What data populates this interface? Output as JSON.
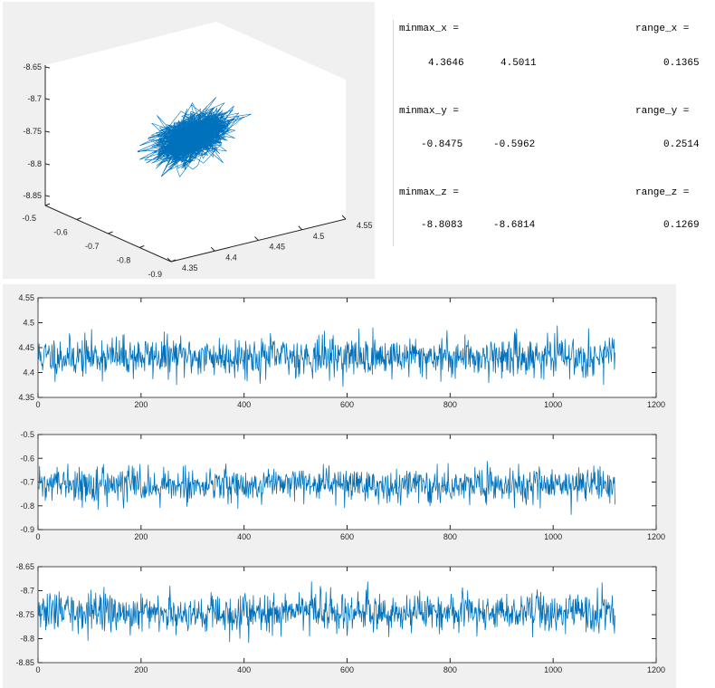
{
  "console": {
    "blocks": [
      {
        "name_label": "minmax_x =",
        "range_label": "range_x =",
        "min": "4.3646",
        "max": "4.5011",
        "range": "0.1365"
      },
      {
        "name_label": "minmax_y =",
        "range_label": "range_y =",
        "min": "-0.8475",
        "max": "-0.5962",
        "range": "0.2514"
      },
      {
        "name_label": "minmax_z =",
        "range_label": "range_z =",
        "min": "-8.8083",
        "max": "-8.6814",
        "range": "0.1269"
      }
    ]
  },
  "chart_data": [
    {
      "type": "line3d",
      "title": "",
      "xlim": [
        4.35,
        4.55
      ],
      "ylim": [
        -0.9,
        -0.5
      ],
      "zlim": [
        -8.85,
        -8.65
      ],
      "x_ticks": [
        "4.35",
        "4.4",
        "4.45",
        "4.5",
        "4.55"
      ],
      "y_ticks": [
        "-0.5",
        "-0.6",
        "-0.7",
        "-0.8",
        "-0.9"
      ],
      "z_ticks": [
        "-8.65",
        "-8.7",
        "-8.75",
        "-8.8",
        "-8.85"
      ],
      "center": [
        4.432,
        -0.712,
        -8.745
      ],
      "spread": [
        0.02,
        0.035,
        0.02
      ],
      "n_points": 1120,
      "color": "#0072bd",
      "grid": false
    },
    {
      "type": "line",
      "title": "",
      "xlabel": "",
      "ylabel": "",
      "xlim": [
        0,
        1200
      ],
      "ylim": [
        4.35,
        4.55
      ],
      "x_ticks": [
        "0",
        "200",
        "400",
        "600",
        "800",
        "1000",
        "1200"
      ],
      "y_ticks": [
        "4.55",
        "4.5",
        "4.45",
        "4.4",
        "4.35"
      ],
      "n_points": 1120,
      "mean": 4.432,
      "std": 0.02,
      "min": 4.3646,
      "max": 4.5011,
      "color": "#0072bd",
      "grid": false
    },
    {
      "type": "line",
      "title": "",
      "xlabel": "",
      "ylabel": "",
      "xlim": [
        0,
        1200
      ],
      "ylim": [
        -0.9,
        -0.5
      ],
      "x_ticks": [
        "0",
        "200",
        "400",
        "600",
        "800",
        "1000",
        "1200"
      ],
      "y_ticks": [
        "-0.5",
        "-0.6",
        "-0.7",
        "-0.8",
        "-0.9"
      ],
      "n_points": 1120,
      "mean": -0.712,
      "std": 0.035,
      "min": -0.8475,
      "max": -0.5962,
      "color": "#0072bd",
      "grid": false
    },
    {
      "type": "line",
      "title": "",
      "xlabel": "",
      "ylabel": "",
      "xlim": [
        0,
        1200
      ],
      "ylim": [
        -8.85,
        -8.65
      ],
      "x_ticks": [
        "0",
        "200",
        "400",
        "600",
        "800",
        "1000",
        "1200"
      ],
      "y_ticks": [
        "-8.65",
        "-8.7",
        "-8.75",
        "-8.8",
        "-8.85"
      ],
      "n_points": 1120,
      "mean": -8.745,
      "std": 0.02,
      "min": -8.8083,
      "max": -8.6814,
      "color": "#0072bd",
      "grid": false
    }
  ]
}
